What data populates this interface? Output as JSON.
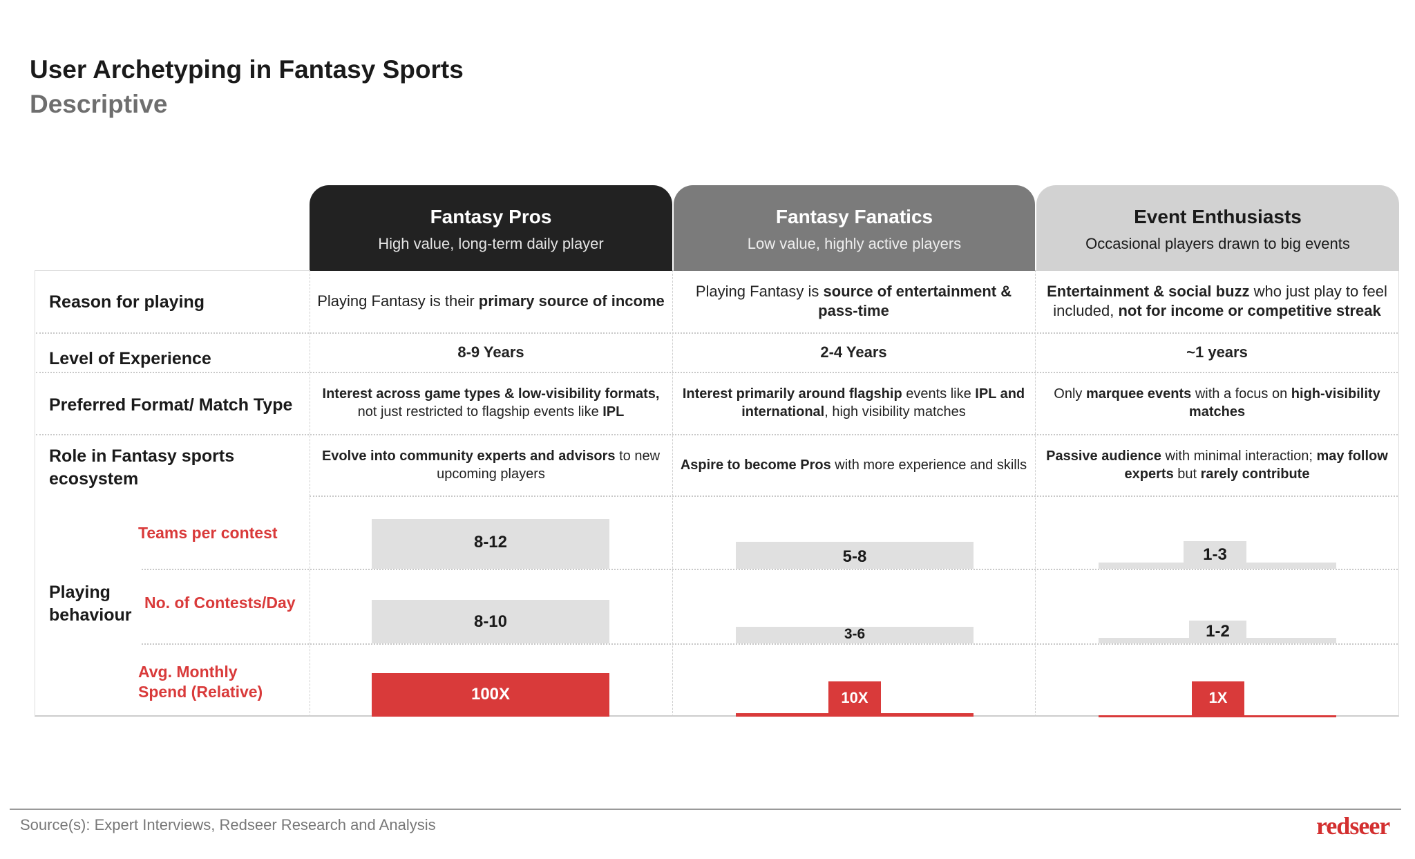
{
  "title": "User Archetyping in Fantasy Sports",
  "subtitle": "Descriptive",
  "colors": {
    "dark_header": "#222222",
    "mid_header": "#7b7b7b",
    "light_header": "#d2d2d2",
    "accent_red": "#d93a3a",
    "bar_gray": "#e0e0e0"
  },
  "archetypes": [
    {
      "name": "Fantasy Pros",
      "tagline": "High value, long-term daily player"
    },
    {
      "name": "Fantasy Fanatics",
      "tagline": "Low value, highly active players"
    },
    {
      "name": "Event Enthusiasts",
      "tagline": "Occasional players drawn to big events"
    }
  ],
  "rows": {
    "reason": {
      "label": "Reason for playing",
      "cells": [
        [
          {
            "t": "Playing Fantasy is their ",
            "b": false
          },
          {
            "t": "primary source of income",
            "b": true
          }
        ],
        [
          {
            "t": "Playing Fantasy is ",
            "b": false
          },
          {
            "t": "source of entertainment & pass-time",
            "b": true
          }
        ],
        [
          {
            "t": "Entertainment & social buzz",
            "b": true
          },
          {
            "t": " who just play to feel included, ",
            "b": false
          },
          {
            "t": "not for income or competitive streak",
            "b": true
          }
        ]
      ]
    },
    "experience": {
      "label": "Level of Experience",
      "cells": [
        [
          {
            "t": "8-9 Years",
            "b": true
          }
        ],
        [
          {
            "t": "2-4 Years",
            "b": true
          }
        ],
        [
          {
            "t": "~1 years",
            "b": true
          }
        ]
      ]
    },
    "format": {
      "label": "Preferred Format/ Match Type",
      "cells": [
        [
          {
            "t": "Interest across game types & low-visibility formats,",
            "b": true
          },
          {
            "t": " not just restricted to flagship events like ",
            "b": false
          },
          {
            "t": "IPL",
            "b": true
          }
        ],
        [
          {
            "t": "Interest primarily around flagship",
            "b": true
          },
          {
            "t": " events like ",
            "b": false
          },
          {
            "t": "IPL and international",
            "b": true
          },
          {
            "t": ", high visibility matches",
            "b": false
          }
        ],
        [
          {
            "t": "Only ",
            "b": false
          },
          {
            "t": "marquee events",
            "b": true
          },
          {
            "t": " with a focus on ",
            "b": false
          },
          {
            "t": "high-visibility matches",
            "b": true
          }
        ]
      ]
    },
    "role": {
      "label": "Role in Fantasy sports ecosystem",
      "cells": [
        [
          {
            "t": "Evolve into community experts and advisors",
            "b": true
          },
          {
            "t": " to new upcoming players",
            "b": false
          }
        ],
        [
          {
            "t": "Aspire to become Pros",
            "b": true
          },
          {
            "t": " with more experience and skills",
            "b": false
          }
        ],
        [
          {
            "t": "Passive audience",
            "b": true
          },
          {
            "t": " with minimal interaction; ",
            "b": false
          },
          {
            "t": "may follow experts",
            "b": true
          },
          {
            "t": " but ",
            "b": false
          },
          {
            "t": "rarely contribute",
            "b": true
          }
        ]
      ]
    }
  },
  "playing_behaviour": {
    "label": "Playing behaviour",
    "metrics": [
      {
        "label": "Teams per contest",
        "values": [
          "8-12",
          "5-8",
          "1-3"
        ]
      },
      {
        "label": "No. of Contests/Day",
        "values": [
          "8-10",
          "3-6",
          "1-2"
        ]
      },
      {
        "label": "Avg. Monthly Spend (Relative)",
        "values": [
          "100X",
          "10X",
          "1X"
        ]
      }
    ]
  },
  "footer": {
    "source": "Source(s): Expert Interviews, Redseer Research and Analysis",
    "logo": "redseer"
  }
}
